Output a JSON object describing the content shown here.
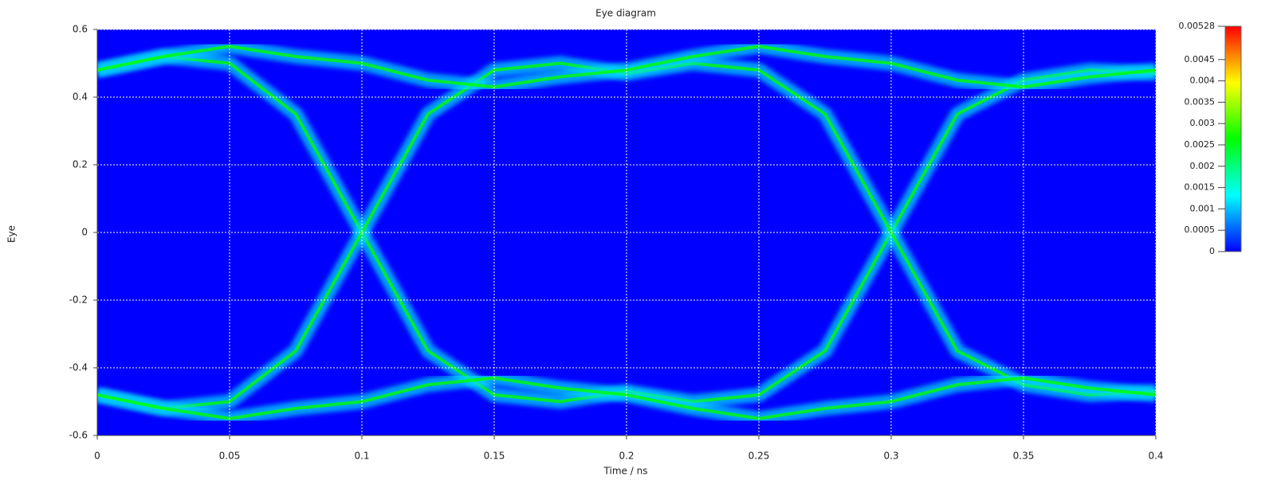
{
  "chart_data": {
    "type": "eye",
    "title": "Eye diagram",
    "x_label": "Time / ns",
    "y_label": "Eye",
    "x": [
      0,
      0.025,
      0.05,
      0.075,
      0.1,
      0.125,
      0.15,
      0.175,
      0.2,
      0.225,
      0.25,
      0.275,
      0.3,
      0.325,
      0.35,
      0.375,
      0.4
    ],
    "series": [
      {
        "color": "#00e0ff",
        "values": [
          0.48,
          0.52,
          0.5,
          0.35,
          0,
          -0.35,
          -0.48,
          -0.5,
          -0.47,
          -0.5,
          -0.48,
          -0.35,
          0,
          0.35,
          0.45,
          0.48,
          0.47
        ]
      },
      {
        "color": "#00e0ff",
        "values": [
          -0.48,
          -0.52,
          -0.5,
          -0.35,
          0,
          0.35,
          0.48,
          0.5,
          0.47,
          0.5,
          0.48,
          0.35,
          0,
          -0.35,
          -0.45,
          -0.48,
          -0.47
        ]
      },
      {
        "color": "#00e0ff",
        "values": [
          0.48,
          0.52,
          0.55,
          0.52,
          0.5,
          0.45,
          0.43,
          0.46,
          0.48,
          0.52,
          0.55,
          0.52,
          0.5,
          0.45,
          0.43,
          0.46,
          0.48
        ]
      },
      {
        "color": "#00e0ff",
        "values": [
          -0.48,
          -0.52,
          -0.55,
          -0.52,
          -0.5,
          -0.45,
          -0.43,
          -0.46,
          -0.48,
          -0.52,
          -0.55,
          -0.52,
          -0.5,
          -0.45,
          -0.43,
          -0.46,
          -0.48
        ]
      }
    ],
    "xlim": [
      0,
      0.4
    ],
    "xticks": [
      0,
      0.05,
      0.1,
      0.15,
      0.2,
      0.25,
      0.3,
      0.35,
      0.4
    ],
    "ylim": [
      -0.6,
      0.6
    ],
    "yticks": [
      -0.6,
      -0.4,
      -0.2,
      0,
      0.2,
      0.4,
      0.6
    ],
    "grid": true,
    "colorbar": {
      "lim": [
        0,
        0.00528
      ],
      "ticks": [
        0,
        0.0005,
        0.001,
        0.0015,
        0.002,
        0.0025,
        0.003,
        0.0035,
        0.004,
        0.0045,
        0.00528
      ],
      "colors": [
        "#0000ff",
        "#00ffff",
        "#00ff00",
        "#ffff00",
        "#ff0000"
      ]
    }
  }
}
